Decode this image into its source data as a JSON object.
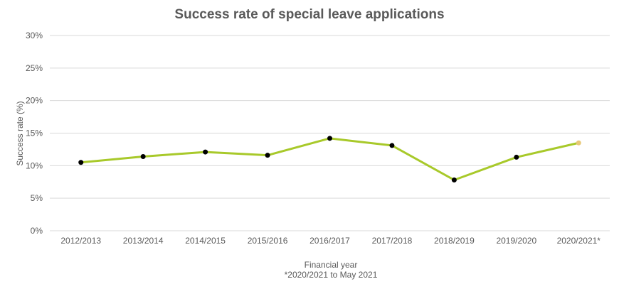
{
  "chart_data": {
    "type": "line",
    "title": "Success rate of special leave applications",
    "xlabel": "Financial year",
    "xlabel_note": "*2020/2021  to May 2021",
    "ylabel": "Success rate  (%)",
    "ylim": [
      0,
      30
    ],
    "yticks": [
      "0%",
      "5%",
      "10%",
      "15%",
      "20%",
      "25%",
      "30%"
    ],
    "grid": true,
    "legend": null,
    "categories": [
      "2012/2013",
      "2013/2014",
      "2014/2015",
      "2015/2016",
      "2016/2017",
      "2017/2018",
      "2018/2019",
      "2019/2020",
      "2020/2021*"
    ],
    "series": [
      {
        "name": "Success rate",
        "values": [
          10.5,
          11.4,
          12.1,
          11.6,
          14.2,
          13.1,
          7.8,
          11.3,
          13.5
        ],
        "line_color": "#a8c92a",
        "marker_color": "#000000",
        "last_marker_color": "#e8c878"
      }
    ]
  }
}
